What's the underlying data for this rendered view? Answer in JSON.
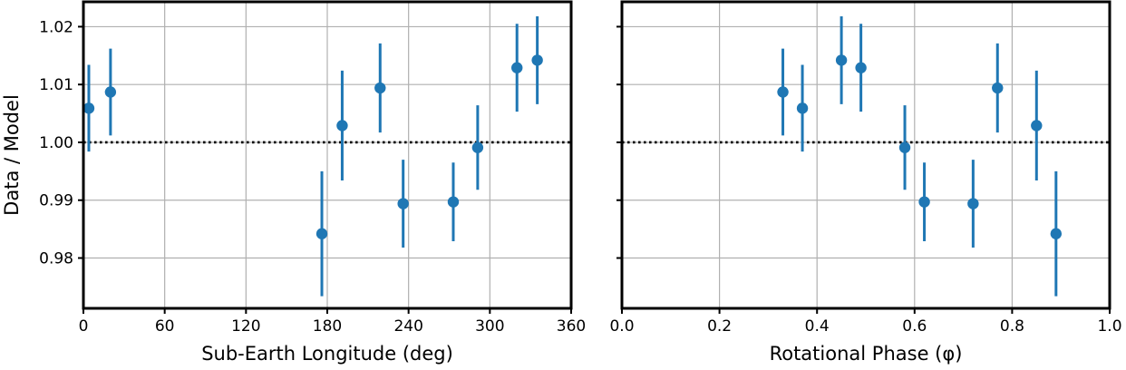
{
  "chart_data": [
    {
      "type": "scatter",
      "xlabel": "Sub-Earth Longitude (deg)",
      "ylabel": "Data / Model",
      "xlim": [
        0,
        360
      ],
      "ylim": [
        0.9713,
        1.0243
      ],
      "xticks": [
        0,
        60,
        120,
        180,
        240,
        300,
        360
      ],
      "yticks": [
        0.98,
        0.99,
        1.0,
        1.01,
        1.02
      ],
      "xtick_labels": [
        "0",
        "60",
        "120",
        "180",
        "240",
        "300",
        "360"
      ],
      "ytick_labels": [
        "0.98",
        "0.99",
        "1.00",
        "1.01",
        "1.02"
      ],
      "grid": true,
      "reference_line": 1.0,
      "color": "#1f77b4",
      "series": [
        {
          "x": [
            4,
            20,
            176,
            191,
            219,
            236,
            273,
            291,
            320,
            335
          ],
          "y": [
            1.0059,
            1.0087,
            0.9842,
            1.0029,
            1.0094,
            0.9894,
            0.9897,
            0.9991,
            1.0129,
            1.0142
          ],
          "yerr": [
            0.0075,
            0.0075,
            0.0108,
            0.0095,
            0.0077,
            0.0076,
            0.0068,
            0.0073,
            0.0076,
            0.0076
          ]
        }
      ]
    },
    {
      "type": "scatter",
      "xlabel": "Rotational Phase (φ)",
      "ylabel": "",
      "xlim": [
        0.0,
        1.0
      ],
      "ylim": [
        0.9713,
        1.0243
      ],
      "xticks": [
        0.0,
        0.2,
        0.4,
        0.6,
        0.8,
        1.0
      ],
      "yticks": [
        0.98,
        0.99,
        1.0,
        1.01,
        1.02
      ],
      "xtick_labels": [
        "0.0",
        "0.2",
        "0.4",
        "0.6",
        "0.8",
        "1.0"
      ],
      "ytick_labels": [],
      "grid": true,
      "reference_line": 1.0,
      "color": "#1f77b4",
      "series": [
        {
          "x": [
            0.33,
            0.37,
            0.45,
            0.49,
            0.58,
            0.62,
            0.72,
            0.77,
            0.85,
            0.89
          ],
          "y": [
            1.0087,
            1.0059,
            1.0142,
            1.0129,
            0.9991,
            0.9897,
            0.9894,
            1.0094,
            1.0029,
            0.9842
          ],
          "yerr": [
            0.0075,
            0.0075,
            0.0076,
            0.0076,
            0.0073,
            0.0068,
            0.0076,
            0.0077,
            0.0095,
            0.0108
          ]
        }
      ]
    }
  ]
}
